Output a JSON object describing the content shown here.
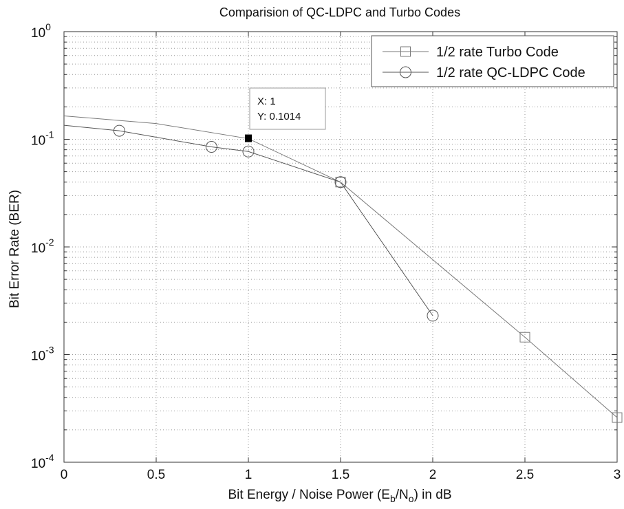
{
  "chart_data": {
    "type": "line",
    "title": "Comparision of QC-LDPC and Turbo Codes",
    "xlabel": "Bit  Energy / Noise Power (E_b/N_o) in dB",
    "xlabel_parts": {
      "before": "Bit  Energy / Noise Power (E",
      "sub1": "b",
      "mid": "/N",
      "sub2": "o",
      "after": ") in dB"
    },
    "ylabel": "Bit Error Rate (BER)",
    "xlim": [
      0,
      3
    ],
    "ylim": [
      0.0001,
      1
    ],
    "yscale": "log",
    "grid": true,
    "x_ticks": [
      "0",
      "0.5",
      "1",
      "1.5",
      "2",
      "2.5",
      "3"
    ],
    "y_ticks": [
      {
        "base": "10",
        "exp": "0"
      },
      {
        "base": "10",
        "exp": "-1"
      },
      {
        "base": "10",
        "exp": "-2"
      },
      {
        "base": "10",
        "exp": "-3"
      },
      {
        "base": "10",
        "exp": "-4"
      }
    ],
    "legend_position": "top-right",
    "series": [
      {
        "name": "1/2 rate Turbo Code",
        "marker": "square",
        "color": "#7a7a7a",
        "x": [
          0,
          0.5,
          1,
          1.5,
          2.5,
          3
        ],
        "y": [
          0.165,
          0.14,
          0.1014,
          0.04,
          0.00145,
          0.00026
        ],
        "marker_points": [
          1.5,
          2.5,
          3
        ]
      },
      {
        "name": "1/2 rate QC-LDPC Code",
        "marker": "circle",
        "color": "#555555",
        "x": [
          0,
          0.3,
          0.8,
          1,
          1.5,
          2
        ],
        "y": [
          0.135,
          0.12,
          0.085,
          0.077,
          0.04,
          0.0023
        ],
        "marker_points": [
          0.3,
          0.8,
          1,
          1.5,
          2
        ]
      }
    ],
    "datatip": {
      "x_text": "X: 1",
      "y_text": "Y: 0.1014",
      "x": 1,
      "y": 0.1014
    }
  }
}
